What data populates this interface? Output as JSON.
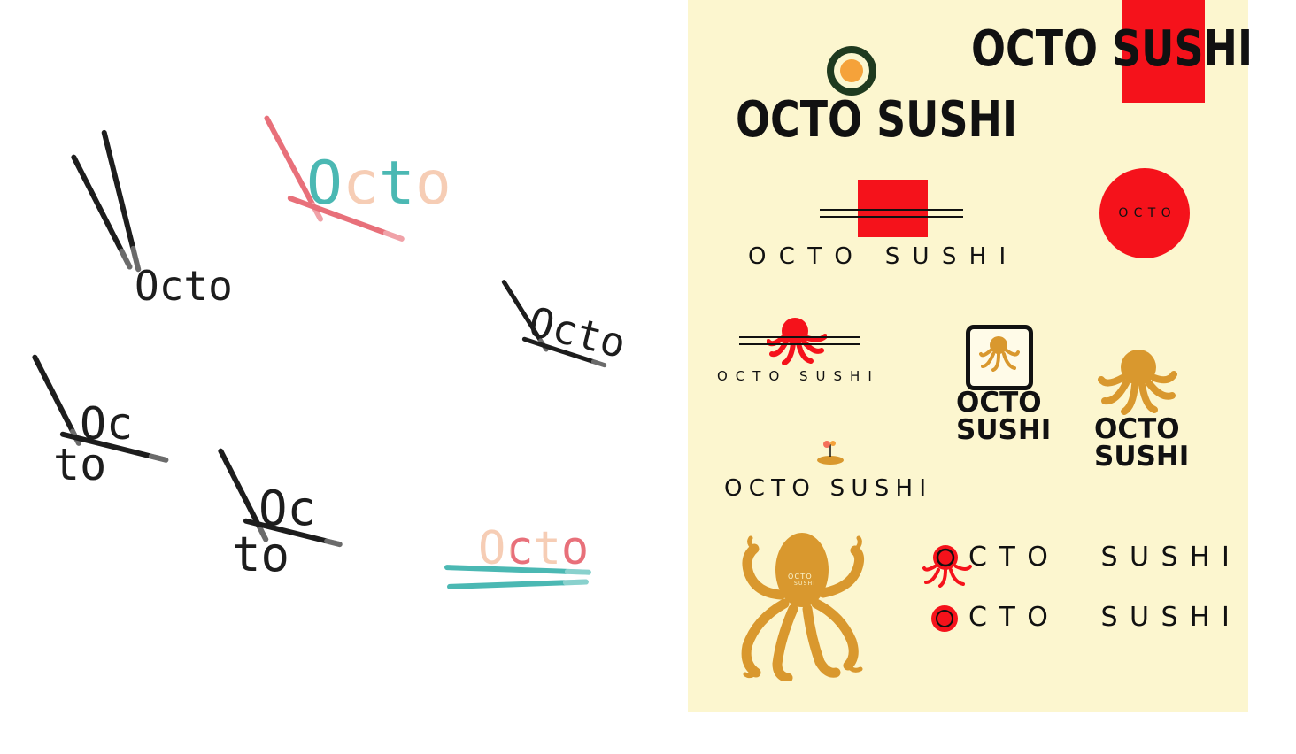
{
  "colors": {
    "black": "#1d1d1d",
    "pink": "#e8707a",
    "teal": "#4bb8b3",
    "peach": "#f6cdb5",
    "red": "#f5121b",
    "gold": "#d9982e",
    "orange": "#f5a23a",
    "cream": "#fcf6cf"
  },
  "sketches": [
    {
      "word": "Octo"
    },
    {
      "word": "Octo"
    },
    {
      "word": "Octo"
    },
    {
      "top": "Oc",
      "bottom": "to"
    },
    {
      "top": "Oc",
      "bottom": "to"
    },
    {
      "word": "Octo"
    }
  ],
  "panel": {
    "title_top_right": "OCTO SUSHI",
    "title_roll": "OCTO SUSHI",
    "lines_logo": "OCTO SUSHI",
    "circle_badge": "OCTO",
    "octo_lines_logo": "OCTO SUSHI",
    "box_logo": {
      "line1": "OCTO",
      "line2": "SUSHI"
    },
    "octo_logo": {
      "line1": "OCTO",
      "line2": "SUSHI"
    },
    "sprout_logo": "OCTO SUSHI",
    "big_octopus": {
      "line1": "OCTO",
      "line2": "SUSHI"
    },
    "dot_logo_1": "CTO  SUSHI",
    "dot_logo_2": "CTO  SUSHI"
  }
}
